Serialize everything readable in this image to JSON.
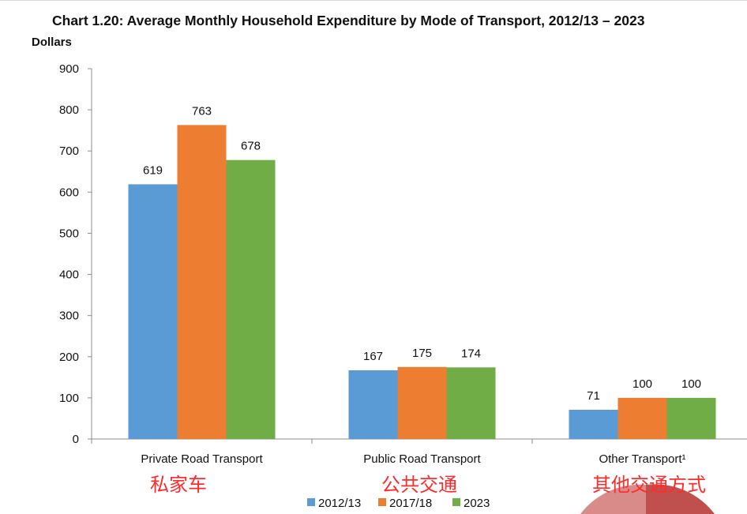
{
  "chart_data": {
    "type": "bar",
    "title": "Chart 1.20: Average Monthly Household Expenditure by Mode of Transport, 2012/13 – 2023",
    "ylabel": "Dollars",
    "xlabel": "",
    "ylim": [
      0,
      900
    ],
    "yticks": [
      0,
      100,
      200,
      300,
      400,
      500,
      600,
      700,
      800,
      900
    ],
    "categories": [
      "Private Road Transport",
      "Public Road Transport",
      "Other Transport¹"
    ],
    "annotations": [
      "私家车",
      "公共交通",
      "其他交通方式"
    ],
    "series": [
      {
        "name": "2012/13",
        "values": [
          619,
          167,
          71
        ],
        "color": "#5b9bd5"
      },
      {
        "name": "2017/18",
        "values": [
          763,
          175,
          100
        ],
        "color": "#ed7d31"
      },
      {
        "name": "2023",
        "values": [
          678,
          174,
          100
        ],
        "color": "#70ad47"
      }
    ],
    "grid": false,
    "legend": "bottom"
  },
  "decor": {
    "overlay_colors": [
      "#d98b89",
      "#c0504d"
    ]
  }
}
